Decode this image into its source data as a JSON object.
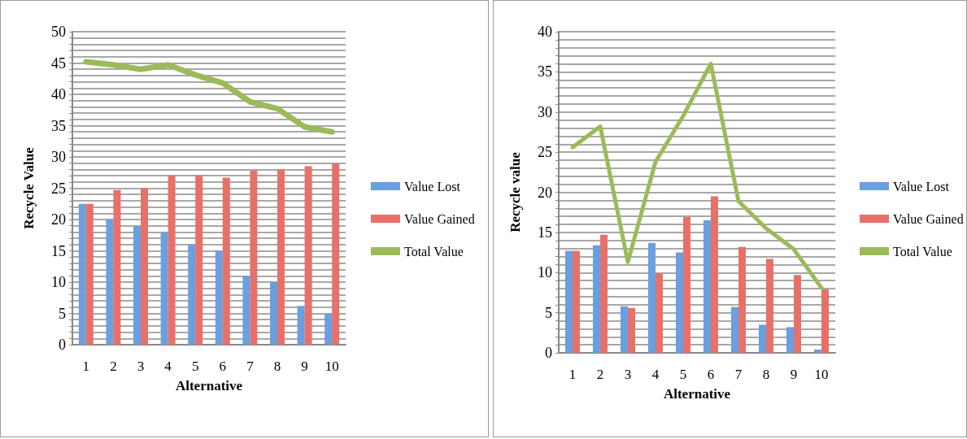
{
  "chart_data": [
    {
      "type": "bar",
      "xlabel": "Alternative",
      "ylabel": "Recycle Value",
      "categories": [
        "1",
        "2",
        "3",
        "4",
        "5",
        "6",
        "7",
        "8",
        "9",
        "10"
      ],
      "series": [
        {
          "name": "Value Lost",
          "color": "#6a9fe0",
          "values": [
            22.5,
            20,
            19,
            18,
            16,
            15,
            11,
            10,
            6.2,
            5
          ]
        },
        {
          "name": "Value Gained",
          "color": "#e8706a",
          "values": [
            22.5,
            24.7,
            25,
            27,
            27,
            26.7,
            27.8,
            28,
            28.5,
            29
          ]
        },
        {
          "name": "Total Value",
          "type": "line",
          "color": "#9bbb59",
          "values": [
            45.2,
            44.7,
            44,
            44.7,
            43.1,
            41.8,
            38.8,
            37.7,
            34.8,
            34
          ]
        }
      ],
      "ylim": [
        0,
        50
      ],
      "yticks": [
        0,
        {
          "value": 1,
          "label": null
        },
        {
          "value": 2,
          "label": null
        },
        {
          "value": 3,
          "label": null
        },
        {
          "value": 4,
          "label": null
        },
        5,
        {
          "value": 6,
          "label": null
        },
        {
          "value": 7,
          "label": null
        },
        {
          "value": 8,
          "label": null
        },
        {
          "value": 9,
          "label": null
        },
        10,
        {
          "value": 11,
          "label": null
        },
        {
          "value": 12,
          "label": null
        },
        {
          "value": 13,
          "label": null
        },
        {
          "value": 14,
          "label": null
        },
        15,
        {
          "value": 16,
          "label": null
        },
        {
          "value": 17,
          "label": null
        },
        {
          "value": 18,
          "label": null
        },
        {
          "value": 19,
          "label": null
        },
        20,
        {
          "value": 21,
          "label": null
        },
        {
          "value": 22,
          "label": null
        },
        {
          "value": 23,
          "label": null
        },
        {
          "value": 24,
          "label": null
        },
        25,
        {
          "value": 26,
          "label": null
        },
        {
          "value": 27,
          "label": null
        },
        {
          "value": 28,
          "label": null
        },
        {
          "value": 29,
          "label": null
        },
        30,
        {
          "value": 31,
          "label": null
        },
        {
          "value": 32,
          "label": null
        },
        {
          "value": 33,
          "label": null
        },
        {
          "value": 34,
          "label": null
        },
        35,
        {
          "value": 36,
          "label": null
        },
        {
          "value": 37,
          "label": null
        },
        {
          "value": 38,
          "label": null
        },
        {
          "value": 39,
          "label": null
        },
        40,
        {
          "value": 41,
          "label": null
        },
        {
          "value": 42,
          "label": null
        },
        {
          "value": 43,
          "label": null
        },
        {
          "value": 44,
          "label": null
        },
        45,
        {
          "value": 46,
          "label": null
        },
        {
          "value": 47,
          "label": null
        },
        {
          "value": 48,
          "label": null
        },
        {
          "value": 49,
          "label": null
        },
        50
      ],
      "grid": "y",
      "legend": "right",
      "marker": "none"
    },
    {
      "type": "bar",
      "xlabel": "Alternative",
      "ylabel": "Recycle value",
      "categories": [
        "1",
        "2",
        "3",
        "4",
        "5",
        "6",
        "7",
        "8",
        "9",
        "10"
      ],
      "series": [
        {
          "name": "Value Lost",
          "color": "#6a9fe0",
          "values": [
            12.7,
            13.4,
            5.8,
            13.7,
            12.5,
            16.5,
            5.7,
            3.5,
            3.2,
            0.4
          ]
        },
        {
          "name": "Value Gained",
          "color": "#e8706a",
          "values": [
            12.7,
            14.7,
            5.6,
            9.9,
            16.9,
            19.5,
            13.2,
            11.7,
            9.7,
            7.9
          ]
        },
        {
          "name": "Total Value",
          "type": "line",
          "color": "#9bbb59",
          "values": [
            25.6,
            28.2,
            11.3,
            23.8,
            29.5,
            36,
            18.9,
            15.5,
            12.9,
            8.1
          ]
        }
      ],
      "ylim": [
        0,
        40
      ],
      "yticks": [
        0,
        {
          "value": 1,
          "label": null
        },
        {
          "value": 2,
          "label": null
        },
        {
          "value": 3,
          "label": null
        },
        {
          "value": 4,
          "label": null
        },
        5,
        {
          "value": 6,
          "label": null
        },
        {
          "value": 7,
          "label": null
        },
        {
          "value": 8,
          "label": null
        },
        {
          "value": 9,
          "label": null
        },
        10,
        {
          "value": 11,
          "label": null
        },
        {
          "value": 12,
          "label": null
        },
        {
          "value": 13,
          "label": null
        },
        {
          "value": 14,
          "label": null
        },
        15,
        {
          "value": 16,
          "label": null
        },
        {
          "value": 17,
          "label": null
        },
        {
          "value": 18,
          "label": null
        },
        {
          "value": 19,
          "label": null
        },
        20,
        {
          "value": 21,
          "label": null
        },
        {
          "value": 22,
          "label": null
        },
        {
          "value": 23,
          "label": null
        },
        {
          "value": 24,
          "label": null
        },
        25,
        {
          "value": 26,
          "label": null
        },
        {
          "value": 27,
          "label": null
        },
        {
          "value": 28,
          "label": null
        },
        {
          "value": 29,
          "label": null
        },
        30,
        {
          "value": 31,
          "label": null
        },
        {
          "value": 32,
          "label": null
        },
        {
          "value": 33,
          "label": null
        },
        {
          "value": 34,
          "label": null
        },
        35,
        {
          "value": 36,
          "label": null
        },
        {
          "value": 37,
          "label": null
        },
        {
          "value": 38,
          "label": null
        },
        {
          "value": 39,
          "label": null
        },
        40
      ],
      "grid": "y",
      "legend": "right",
      "marker": "none"
    }
  ]
}
